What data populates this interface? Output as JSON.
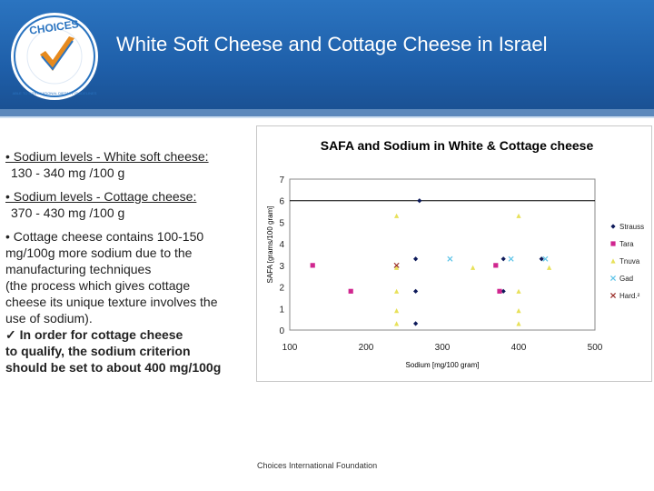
{
  "header": {
    "title": "White Soft Cheese and Cottage Cheese in Israel",
    "logo_text": "CHOICES",
    "logo_ring_text": "ABLE TO INTERNATIONAL DIETARY GUIDELINES",
    "bg_color": "#1f5fa8"
  },
  "bullets": {
    "b1": "• Sodium levels - White soft cheese:",
    "b1_sub": "130 - 340 mg /100 g",
    "b2": "• Sodium levels - Cottage cheese:",
    "b2_sub": "370 - 430 mg /100 g",
    "b3_lines": [
      "• Cottage cheese contains 100-150",
      "mg/100g more sodium due to the",
      "manufacturing techniques",
      "(the process which gives cottage",
      "cheese its unique texture involves the",
      "use of sodium)."
    ],
    "b4_lines": [
      "✓ In order for cottage cheese",
      "to qualify, the sodium criterion",
      "should be set to about 400 mg/100g"
    ]
  },
  "footer": {
    "text": "Choices International Foundation"
  },
  "chart_data": {
    "type": "scatter",
    "title": "SAFA and Sodium in White & Cottage cheese",
    "xlabel": "Sodium [mg/100 gram]",
    "ylabel": "SAFA [grams/100 gram]",
    "xlim": [
      100,
      500
    ],
    "ylim": [
      0,
      7
    ],
    "xticks": [
      100,
      200,
      300,
      400,
      500
    ],
    "yticks": [
      0,
      1,
      2,
      3,
      4,
      5,
      6,
      7
    ],
    "reference_line_y": 6,
    "legend_position": "right",
    "series": [
      {
        "name": "Strauss",
        "color": "#0d1a5a",
        "marker": "diamond",
        "points": [
          [
            270,
            6
          ],
          [
            265,
            3.3
          ],
          [
            265,
            1.8
          ],
          [
            265,
            0.3
          ],
          [
            380,
            3.3
          ],
          [
            380,
            1.8
          ],
          [
            430,
            3.3
          ]
        ]
      },
      {
        "name": "Tara",
        "color": "#d0268f",
        "marker": "square",
        "points": [
          [
            130,
            3
          ],
          [
            180,
            1.8
          ],
          [
            370,
            3
          ],
          [
            375,
            1.8
          ]
        ]
      },
      {
        "name": "Tnuva",
        "color": "#e8e15a",
        "marker": "triangle",
        "points": [
          [
            240,
            5.3
          ],
          [
            240,
            2.9
          ],
          [
            240,
            1.8
          ],
          [
            240,
            0.9
          ],
          [
            240,
            0.3
          ],
          [
            340,
            2.9
          ],
          [
            400,
            5.3
          ],
          [
            400,
            1.8
          ],
          [
            400,
            0.9
          ],
          [
            400,
            0.3
          ],
          [
            440,
            2.9
          ]
        ]
      },
      {
        "name": "Gad",
        "color": "#5ec4e8",
        "marker": "x",
        "points": [
          [
            310,
            3.3
          ],
          [
            390,
            3.3
          ],
          [
            435,
            3.3
          ]
        ]
      },
      {
        "name": "Hard.²",
        "color": "#9b2f2a",
        "marker": "x",
        "points": [
          [
            240,
            3
          ]
        ]
      }
    ]
  }
}
